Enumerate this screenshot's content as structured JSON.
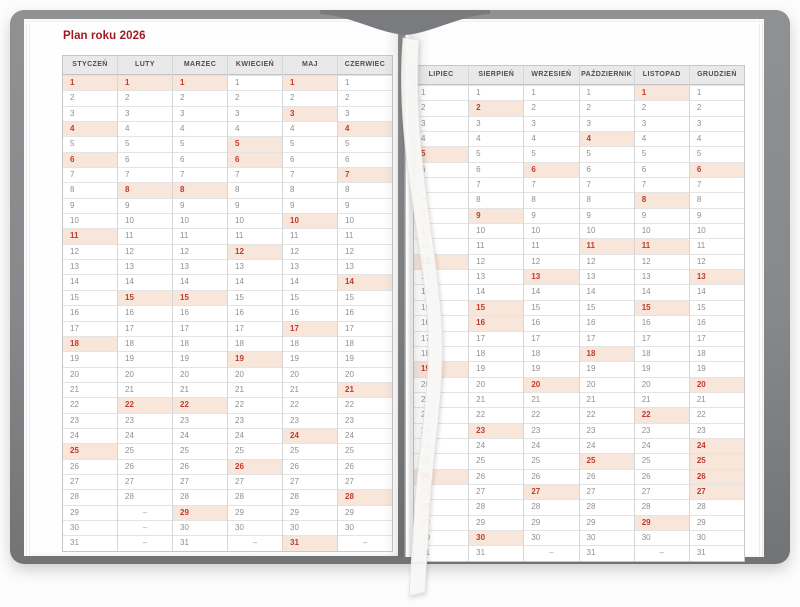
{
  "title": "Plan roku 2026",
  "empty_day_symbol": "–",
  "rows_per_month": 31,
  "colors": {
    "title_red": "#9e1b1f",
    "highlight_bg": "#f9e6da",
    "highlight_text": "#bf3b2f",
    "cover_gray": "#86888b",
    "header_bg": "#e9e9e9"
  },
  "pages": [
    {
      "side": "left",
      "months": [
        {
          "name": "STYCZEŃ",
          "days": 31,
          "highlighted": [
            1,
            4,
            6,
            11,
            18,
            25
          ]
        },
        {
          "name": "LUTY",
          "days": 28,
          "highlighted": [
            1,
            8,
            15,
            22
          ]
        },
        {
          "name": "MARZEC",
          "days": 31,
          "highlighted": [
            1,
            8,
            15,
            22,
            29
          ]
        },
        {
          "name": "KWIECIEŃ",
          "days": 30,
          "highlighted": [
            5,
            6,
            12,
            19,
            26
          ]
        },
        {
          "name": "MAJ",
          "days": 31,
          "highlighted": [
            1,
            3,
            10,
            17,
            24,
            31
          ]
        },
        {
          "name": "CZERWIEC",
          "days": 30,
          "highlighted": [
            4,
            7,
            14,
            21,
            28
          ]
        }
      ]
    },
    {
      "side": "right",
      "months": [
        {
          "name": "LIPIEC",
          "days": 31,
          "highlighted": [
            5,
            12,
            19,
            26
          ]
        },
        {
          "name": "SIERPIEŃ",
          "days": 31,
          "highlighted": [
            2,
            9,
            15,
            16,
            23,
            30
          ]
        },
        {
          "name": "WRZESIEŃ",
          "days": 30,
          "highlighted": [
            6,
            13,
            20,
            27
          ]
        },
        {
          "name": "PAŹDZIERNIK",
          "days": 31,
          "highlighted": [
            4,
            11,
            18,
            25
          ]
        },
        {
          "name": "LISTOPAD",
          "days": 30,
          "highlighted": [
            1,
            8,
            11,
            15,
            22,
            29
          ]
        },
        {
          "name": "GRUDZIEŃ",
          "days": 31,
          "highlighted": [
            6,
            13,
            20,
            24,
            25,
            26,
            27
          ]
        }
      ]
    }
  ]
}
